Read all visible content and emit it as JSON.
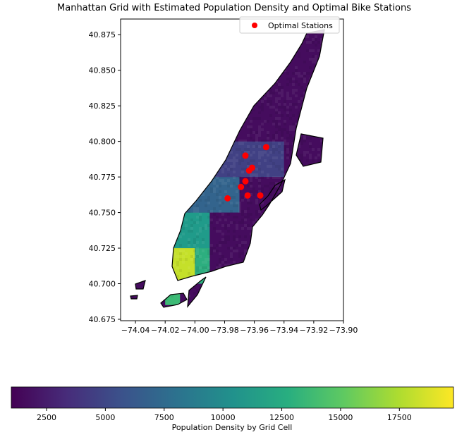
{
  "chart_data": {
    "type": "heatmap",
    "title": "Manhattan Grid with Estimated Population Density and Optimal Bike Stations",
    "xlabel": "",
    "ylabel": "",
    "xlim": [
      -74.05,
      -73.9
    ],
    "ylim": [
      40.674,
      40.886
    ],
    "x_ticks": [
      -74.04,
      -74.02,
      -74.0,
      -73.98,
      -73.96,
      -73.94,
      -73.92,
      -73.9
    ],
    "x_tick_labels": [
      "−74.04",
      "−74.02",
      "−74.00",
      "−73.98",
      "−73.96",
      "−73.94",
      "−73.92",
      "−73.90"
    ],
    "y_ticks": [
      40.675,
      40.7,
      40.725,
      40.75,
      40.775,
      40.8,
      40.825,
      40.85,
      40.875
    ],
    "y_tick_labels": [
      "40.675",
      "40.700",
      "40.725",
      "40.750",
      "40.775",
      "40.800",
      "40.825",
      "40.850",
      "40.875"
    ],
    "grid": false,
    "legend_placement": "upper-right",
    "legend": [
      {
        "label": "Optimal Stations",
        "color": "#ff0000",
        "marker": "circle"
      }
    ],
    "series": [
      {
        "name": "Optimal Stations",
        "type": "scatter",
        "points": [
          [
            -73.978,
            40.76
          ],
          [
            -73.969,
            40.768
          ],
          [
            -73.9645,
            40.762
          ],
          [
            -73.956,
            40.762
          ],
          [
            -73.966,
            40.772
          ],
          [
            -73.9635,
            40.7795
          ],
          [
            -73.9615,
            40.7815
          ],
          [
            -73.966,
            40.79
          ],
          [
            -73.952,
            40.796
          ]
        ]
      }
    ],
    "density_regions": [
      {
        "lon_range": [
          -74.03,
          -74.0
        ],
        "lat_range": [
          40.7,
          40.725
        ],
        "value": 18200
      },
      {
        "lon_range": [
          -74.0,
          -73.99
        ],
        "lat_range": [
          40.7,
          40.725
        ],
        "value": 12800
      },
      {
        "lon_range": [
          -74.02,
          -73.99
        ],
        "lat_range": [
          40.725,
          40.75
        ],
        "value": 11200
      },
      {
        "lon_range": [
          -74.01,
          -73.97
        ],
        "lat_range": [
          40.75,
          40.775
        ],
        "value": 7000
      },
      {
        "lon_range": [
          -73.99,
          -73.94
        ],
        "lat_range": [
          40.775,
          40.8
        ],
        "value": 4600
      },
      {
        "lon_range": [
          -73.97,
          -73.92
        ],
        "lat_range": [
          40.8,
          40.875
        ],
        "value": 1600
      },
      {
        "lon_range": [
          -74.02,
          -74.01
        ],
        "lat_range": [
          40.685,
          40.7
        ],
        "value": 13800
      }
    ],
    "colorbar": {
      "label": "Population Density by Grid Cell",
      "colormap": "viridis",
      "orientation": "horizontal",
      "range": [
        1000,
        19800
      ],
      "ticks": [
        2500,
        5000,
        7500,
        10000,
        12500,
        15000,
        17500
      ],
      "tick_labels": [
        "2500",
        "5000",
        "7500",
        "10000",
        "12500",
        "15000",
        "17500"
      ]
    }
  }
}
